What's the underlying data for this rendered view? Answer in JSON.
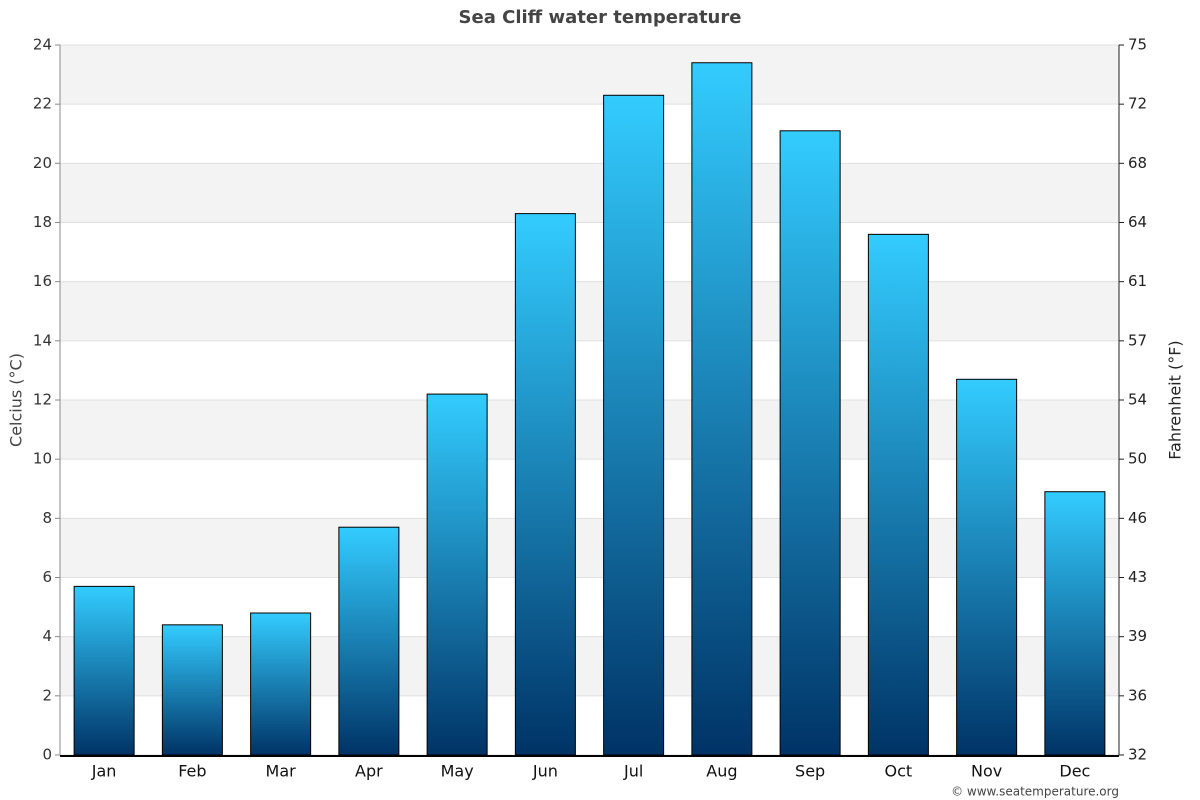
{
  "chart_data": {
    "type": "bar",
    "title": "Sea Cliff water temperature",
    "categories": [
      "Jan",
      "Feb",
      "Mar",
      "Apr",
      "May",
      "Jun",
      "Jul",
      "Aug",
      "Sep",
      "Oct",
      "Nov",
      "Dec"
    ],
    "values": [
      5.7,
      4.4,
      4.8,
      7.7,
      12.2,
      18.3,
      22.3,
      23.4,
      21.1,
      17.6,
      12.7,
      8.9
    ],
    "color": [
      "#33ccff",
      "#003366"
    ],
    "ylabel": "Celcius (°C)",
    "ylim": [
      0,
      24
    ],
    "yticks": [
      0,
      2,
      4,
      6,
      8,
      10,
      12,
      14,
      16,
      18,
      20,
      22,
      24
    ],
    "y2label": "Fahrenheit (°F)",
    "y2lim": [
      32,
      75.2
    ],
    "y2ticks": [
      32,
      {
        "value": 35.6,
        "label": "36"
      },
      {
        "value": 39.2,
        "label": "39"
      },
      {
        "value": 42.8,
        "label": "43"
      },
      {
        "value": 46.4,
        "label": "46"
      },
      50,
      {
        "value": 53.6,
        "label": "54"
      },
      {
        "value": 57.2,
        "label": "57"
      },
      {
        "value": 60.8,
        "label": "61"
      },
      {
        "value": 64.4,
        "label": "64"
      },
      68,
      {
        "value": 71.6,
        "label": "72"
      },
      {
        "value": 75.2,
        "label": "75"
      }
    ],
    "grid": true,
    "credit": "© www.seatemperature.org"
  }
}
